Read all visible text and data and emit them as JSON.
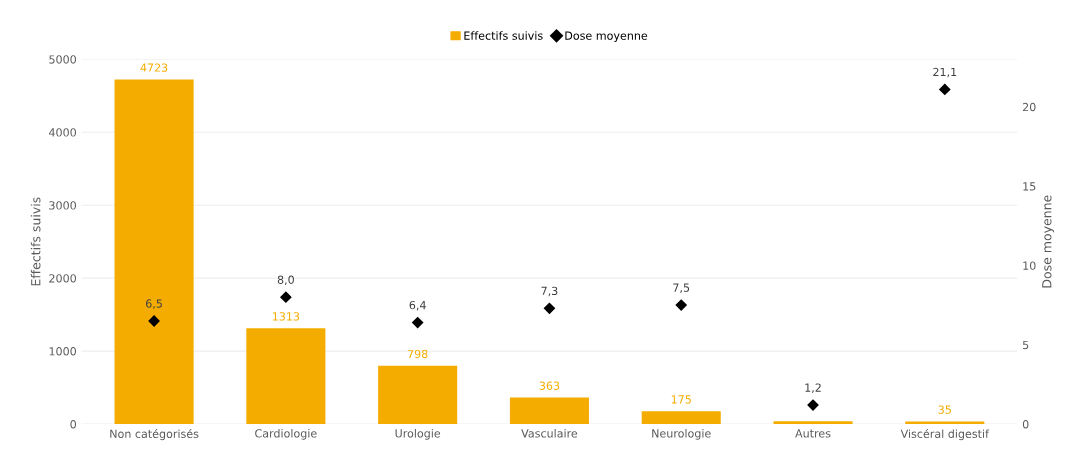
{
  "chart_data": {
    "type": "bar",
    "categories": [
      "Non catégorisés",
      "Cardiologie",
      "Urologie",
      "Vasculaire",
      "Neurologie",
      "Autres",
      "Viscéral digestif"
    ],
    "series": [
      {
        "name": "Effectifs suivis",
        "color": "#f5ac00",
        "values": [
          4723,
          1313,
          798,
          363,
          175,
          40,
          35
        ],
        "value_labels": [
          "4723",
          "1313",
          "798",
          "363",
          "175",
          null,
          "35"
        ]
      },
      {
        "name": "Dose moyenne",
        "type": "scatter",
        "axis": "y2",
        "color": "#000000",
        "values": [
          6.5,
          8.0,
          6.4,
          7.3,
          7.5,
          1.2,
          21.1
        ],
        "value_labels": [
          "6,5",
          "8,0",
          "6,4",
          "7,3",
          "7,5",
          "1,2",
          "21,1"
        ]
      }
    ],
    "data_labels": true,
    "ylabel": "Effectifs suivis",
    "y2label": "Dose moyenne",
    "ylim": [
      0,
      5000
    ],
    "yticks": [
      0,
      1000,
      2000,
      3000,
      4000,
      5000
    ],
    "y2lim": [
      0,
      23
    ],
    "y2ticks": [
      0,
      5,
      10,
      15,
      20
    ],
    "grid": "y",
    "legend": "top",
    "marker": "diamond"
  }
}
